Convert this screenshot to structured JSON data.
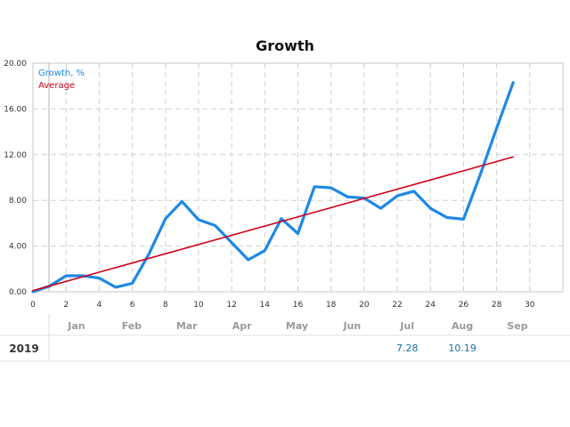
{
  "chart_data": {
    "type": "line",
    "title": "Growth",
    "xlim": [
      0,
      32
    ],
    "ylim": [
      0,
      20
    ],
    "x_ticks": [
      "0",
      "2",
      "4",
      "6",
      "8",
      "10",
      "12",
      "14",
      "16",
      "18",
      "20",
      "22",
      "24",
      "26",
      "28",
      "30"
    ],
    "y_ticks": [
      "0.00",
      "4.00",
      "8.00",
      "12.00",
      "16.00",
      "20.00"
    ],
    "grid": true,
    "legend_position": "top-left",
    "series": [
      {
        "name": "Growth, %",
        "color": "#1e88e5",
        "x": [
          0,
          1,
          2,
          3,
          4,
          5,
          6,
          7,
          8,
          9,
          10,
          11,
          12,
          13,
          14,
          15,
          16,
          17,
          18,
          19,
          20,
          21,
          22,
          23,
          24,
          25,
          26,
          27,
          28,
          29
        ],
        "y": [
          0.0,
          0.5,
          1.4,
          1.4,
          1.2,
          0.4,
          0.75,
          3.3,
          6.4,
          7.9,
          6.3,
          5.8,
          4.3,
          2.8,
          3.6,
          6.4,
          5.1,
          9.2,
          9.1,
          8.3,
          8.2,
          7.3,
          8.4,
          8.8,
          7.3,
          6.5,
          6.35,
          10.2,
          14.3,
          18.3
        ]
      },
      {
        "name": "Average",
        "color": "#d0021b",
        "x": [
          0,
          29
        ],
        "y": [
          0.1,
          11.8
        ]
      }
    ]
  },
  "months_table": {
    "year": "2019",
    "months": [
      "Jan",
      "Feb",
      "Mar",
      "Apr",
      "May",
      "Jun",
      "Jul",
      "Aug",
      "Sep"
    ],
    "values": [
      "",
      "",
      "",
      "",
      "",
      "",
      "7.28",
      "10.19",
      ""
    ]
  }
}
